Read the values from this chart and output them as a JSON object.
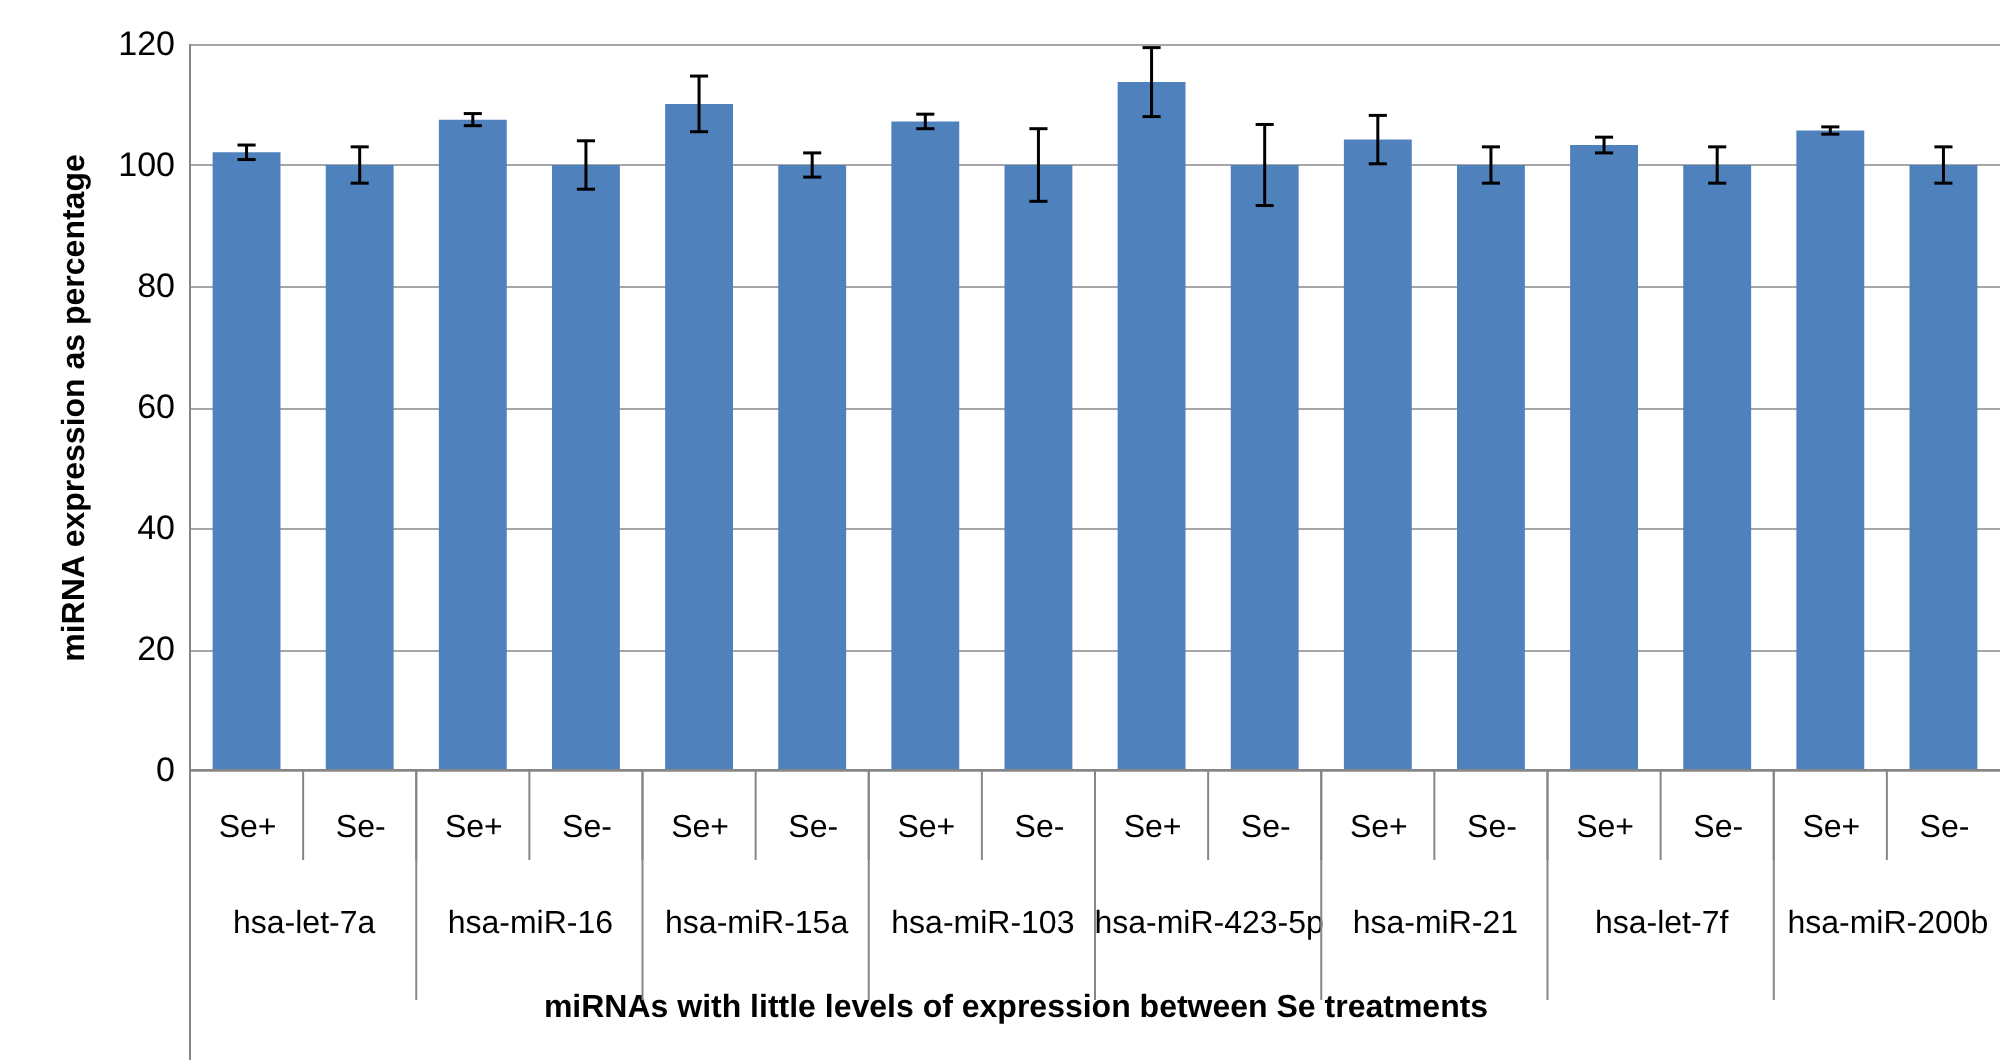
{
  "chart_data": {
    "type": "bar",
    "xlabel": "miRNAs with little levels of expression between Se treatments",
    "ylabel": "miRNA expression as percentage",
    "categories": [
      "Se+",
      "Se-",
      "Se+",
      "Se-",
      "Se+",
      "Se-",
      "Se+",
      "Se-",
      "Se+",
      "Se-",
      "Se+",
      "Se-",
      "Se+",
      "Se-",
      "Se+",
      "Se-"
    ],
    "values": [
      102.1,
      100,
      107.5,
      100,
      110.1,
      100,
      107.2,
      100,
      113.7,
      100,
      104.2,
      100,
      103.3,
      100,
      105.7,
      100
    ],
    "errors": [
      1.2,
      3,
      1,
      4,
      4.6,
      2,
      1.2,
      6,
      5.7,
      6.7,
      4,
      3,
      1.3,
      3,
      0.6,
      3
    ],
    "annotations": [
      "hsa-let-7a",
      "hsa-miR-16",
      "hsa-miR-15a",
      "hsa-miR-103",
      "hsa-miR-423-5p",
      "hsa-miR-21",
      "hsa-let-7f",
      "hsa-miR-200b"
    ],
    "color": "#4f81bd",
    "ylim": [
      0,
      120
    ],
    "yticks": [
      0,
      20,
      40,
      60,
      80,
      100,
      120
    ],
    "grid": "y"
  }
}
